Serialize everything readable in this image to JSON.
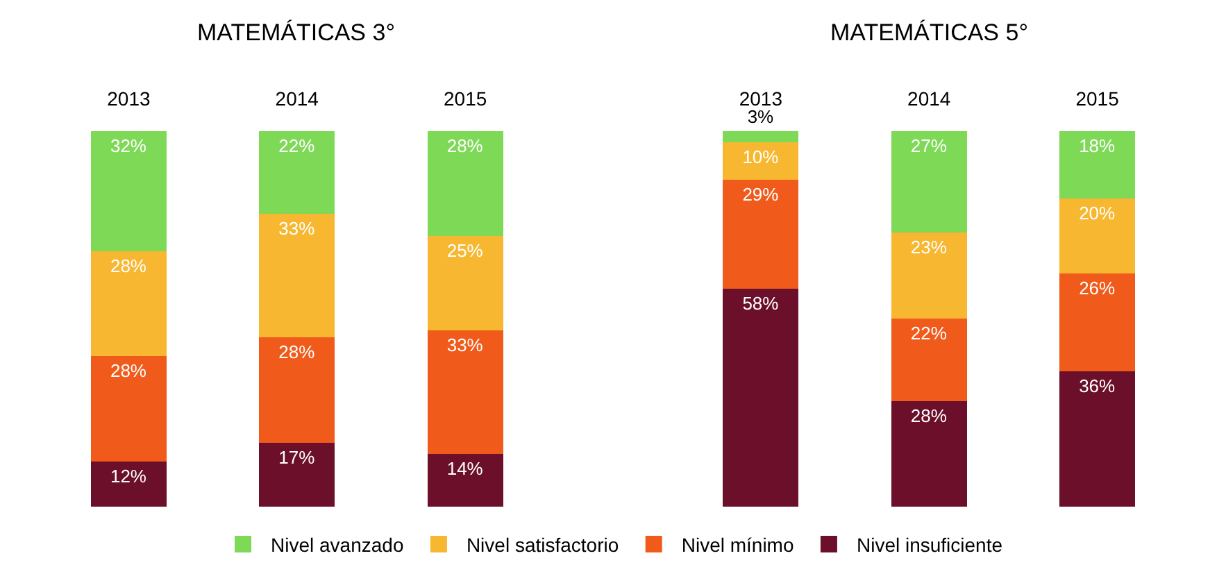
{
  "chart_data": [
    {
      "type": "bar",
      "title": "MATEMÁTICAS 3°",
      "categories": [
        "2013",
        "2014",
        "2015"
      ],
      "stacked": true,
      "legend": "bottom",
      "tick_labels": "x",
      "series": [
        {
          "name": "Nivel insuficiente",
          "color": "#6b0f2a",
          "values": [
            12,
            17,
            14
          ],
          "value_labels": [
            "12%",
            "17%",
            "14%"
          ]
        },
        {
          "name": "Nivel mínimo",
          "color": "#f05a1a",
          "values": [
            28,
            28,
            33
          ],
          "value_labels": [
            "28%",
            "28%",
            "33%"
          ]
        },
        {
          "name": "Nivel satisfactorio",
          "color": "#f7b731",
          "values": [
            28,
            33,
            25
          ],
          "value_labels": [
            "28%",
            "33%",
            "25%"
          ]
        },
        {
          "name": "Nivel avanzado",
          "color": "#7ed957",
          "values": [
            32,
            22,
            28
          ],
          "value_labels": [
            "32%",
            "22%",
            "28%"
          ]
        }
      ]
    },
    {
      "type": "bar",
      "title": "MATEMÁTICAS 5°",
      "categories": [
        "2013",
        "2014",
        "2015"
      ],
      "stacked": true,
      "legend": "bottom",
      "tick_labels": "x",
      "series": [
        {
          "name": "Nivel insuficiente",
          "color": "#6b0f2a",
          "values": [
            58,
            28,
            36
          ],
          "value_labels": [
            "58%",
            "28%",
            "36%"
          ]
        },
        {
          "name": "Nivel mínimo",
          "color": "#f05a1a",
          "values": [
            29,
            22,
            26
          ],
          "value_labels": [
            "29%",
            "22%",
            "26%"
          ]
        },
        {
          "name": "Nivel satisfactorio",
          "color": "#f7b731",
          "values": [
            10,
            23,
            20
          ],
          "value_labels": [
            "10%",
            "23%",
            "20%"
          ]
        },
        {
          "name": "Nivel avanzado",
          "color": "#7ed957",
          "values": [
            3,
            27,
            18
          ],
          "value_labels": [
            "3%",
            "27%",
            "18%"
          ]
        }
      ]
    }
  ]
}
